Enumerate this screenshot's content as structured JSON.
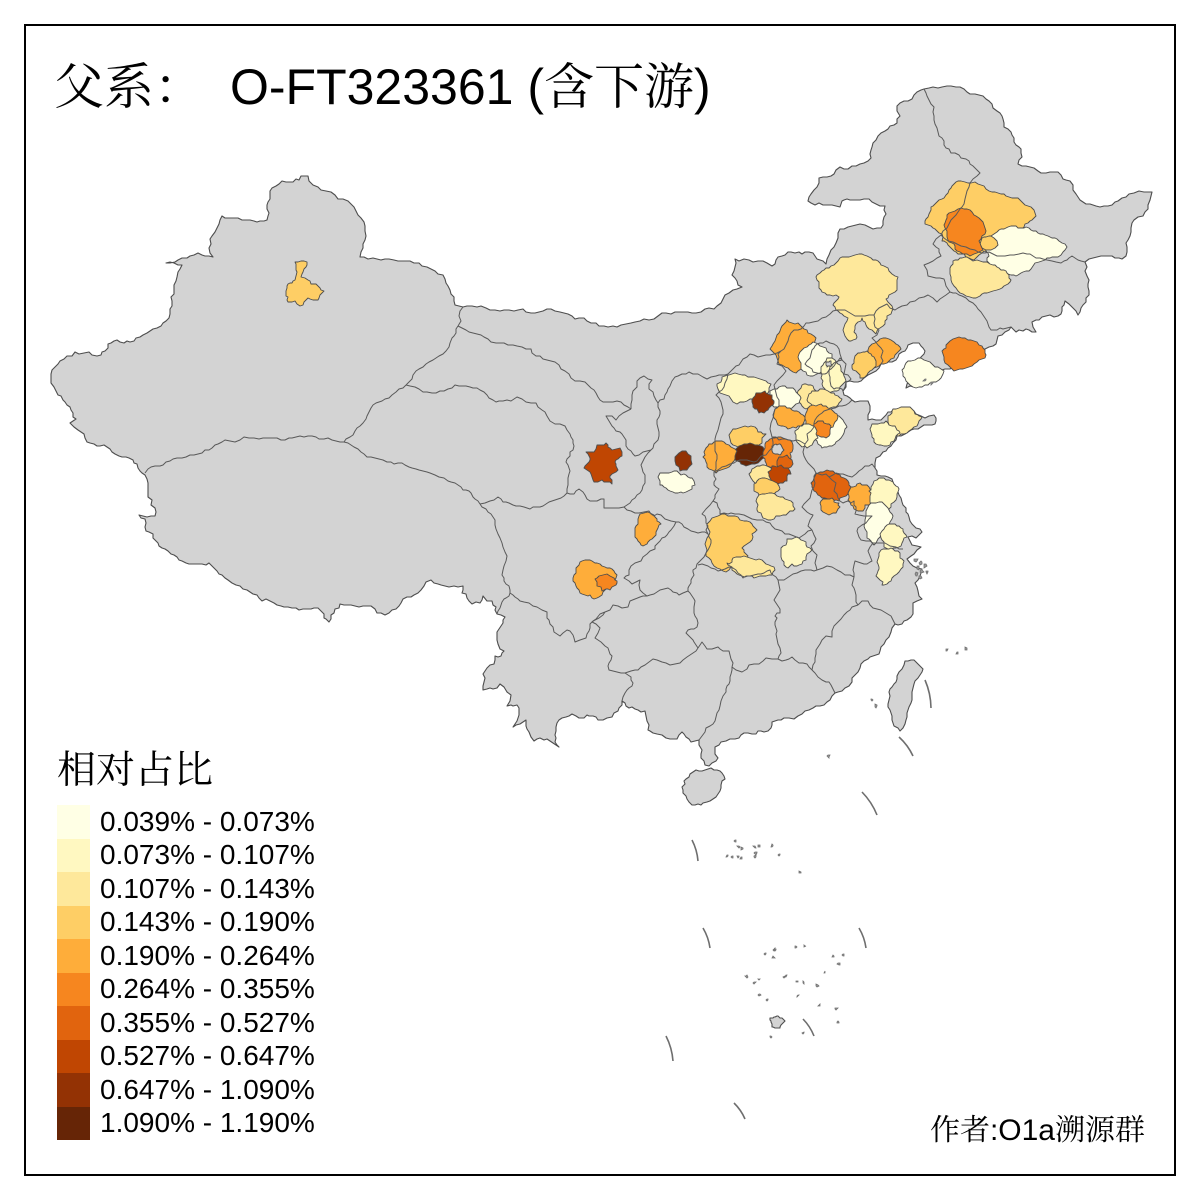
{
  "title": {
    "label": "父系：",
    "lineage": "O-FT323361",
    "suffix": "(含下游)"
  },
  "legend": {
    "title": "相对占比",
    "bins": [
      {
        "label": "0.039% - 0.073%",
        "color": "#FFFFE5"
      },
      {
        "label": "0.073% - 0.107%",
        "color": "#FFF8C1"
      },
      {
        "label": "0.107% - 0.143%",
        "color": "#FEE89B"
      },
      {
        "label": "0.143% - 0.190%",
        "color": "#FECE65"
      },
      {
        "label": "0.190% - 0.264%",
        "color": "#FEAD3A"
      },
      {
        "label": "0.264% - 0.355%",
        "color": "#F6861F"
      },
      {
        "label": "0.355% - 0.527%",
        "color": "#E1640E"
      },
      {
        "label": "0.527% - 0.647%",
        "color": "#C04602"
      },
      {
        "label": "0.647% - 1.090%",
        "color": "#933204"
      },
      {
        "label": "1.090% - 1.190%",
        "color": "#662506"
      }
    ]
  },
  "author": "作者:O1a溯源群",
  "map": {
    "background": "#FFFFFF",
    "land_fill": "#D3D3D3",
    "border_color": "#4D4D4D",
    "frame_color": "#000000",
    "regions": [
      {
        "name": "urumqi",
        "bin": 4
      },
      {
        "name": "suihua",
        "bin": 4
      },
      {
        "name": "harbin-east",
        "bin": 1
      },
      {
        "name": "jiamusi-lite",
        "bin": 4
      },
      {
        "name": "harbin-core",
        "bin": 6
      },
      {
        "name": "changchun",
        "bin": 3
      },
      {
        "name": "chifeng-tongliao",
        "bin": 3
      },
      {
        "name": "huludao",
        "bin": 5
      },
      {
        "name": "qinhuangdao",
        "bin": 4
      },
      {
        "name": "dandong",
        "bin": 6
      },
      {
        "name": "dalian",
        "bin": 1
      },
      {
        "name": "chengde",
        "bin": 5
      },
      {
        "name": "beijing",
        "bin": 1
      },
      {
        "name": "tianjin",
        "bin": 2
      },
      {
        "name": "cangzhou",
        "bin": 3
      },
      {
        "name": "baoding",
        "bin": 1
      },
      {
        "name": "shijiazhuang",
        "bin": 5
      },
      {
        "name": "xinzhou",
        "bin": 2
      },
      {
        "name": "yangquan",
        "bin": 9
      },
      {
        "name": "changzhi",
        "bin": 4
      },
      {
        "name": "jincheng",
        "bin": 10
      },
      {
        "name": "linfen-yuncheng",
        "bin": 5
      },
      {
        "name": "zhengzhou",
        "bin": 3
      },
      {
        "name": "xinxiang",
        "bin": 6
      },
      {
        "name": "anyang-dark",
        "bin": 7
      },
      {
        "name": "kaifeng",
        "bin": 8
      },
      {
        "name": "xuchang",
        "bin": 4
      },
      {
        "name": "zhoukou",
        "bin": 3
      },
      {
        "name": "nanyang",
        "bin": 4
      },
      {
        "name": "xiangyang-south",
        "bin": 3
      },
      {
        "name": "wuhan-east",
        "bin": 2
      },
      {
        "name": "binzhou",
        "bin": 3
      },
      {
        "name": "zibo",
        "bin": 1
      },
      {
        "name": "jinan",
        "bin": 5
      },
      {
        "name": "taian",
        "bin": 6
      },
      {
        "name": "liaocheng",
        "bin": 2
      },
      {
        "name": "yantai",
        "bin": 3
      },
      {
        "name": "qingdao",
        "bin": 2
      },
      {
        "name": "xuzhou",
        "bin": 7
      },
      {
        "name": "suzhou-wan",
        "bin": 5
      },
      {
        "name": "huaian",
        "bin": 5
      },
      {
        "name": "yancheng",
        "bin": 2
      },
      {
        "name": "taizhou",
        "bin": 1
      },
      {
        "name": "nantong",
        "bin": 2
      },
      {
        "name": "shanghai-south",
        "bin": 2
      },
      {
        "name": "lanzhou",
        "bin": 8
      },
      {
        "name": "tongchuan",
        "bin": 9
      },
      {
        "name": "xian",
        "bin": 1
      },
      {
        "name": "bazhong",
        "bin": 5
      },
      {
        "name": "meishan",
        "bin": 5
      },
      {
        "name": "zigong",
        "bin": 6
      }
    ]
  }
}
